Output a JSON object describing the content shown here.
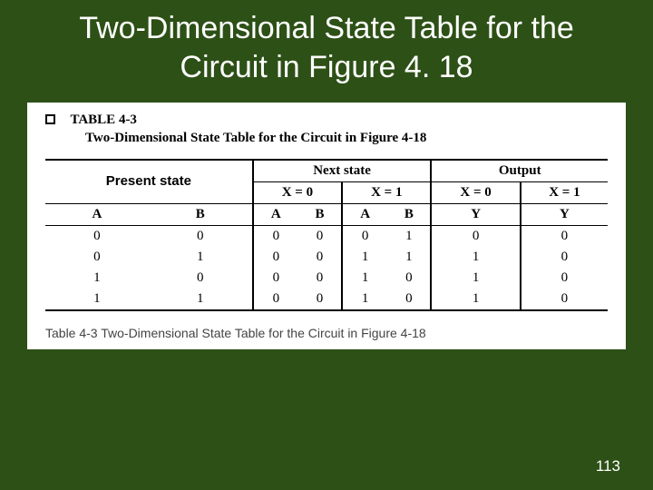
{
  "slide": {
    "title": "Two-Dimensional State Table for the Circuit in Figure 4. 18",
    "page_number": "113",
    "background_color": "#2d5016",
    "title_color": "#ffffff"
  },
  "table_block": {
    "label": "TABLE 4-3",
    "subtitle": "Two-Dimensional State Table for the Circuit in Figure 4-18",
    "caption": "Table 4-3  Two-Dimensional State Table for the Circuit in Figure 4-18",
    "group_headers": {
      "present": "Present state",
      "next": "Next state",
      "output": "Output"
    },
    "input_cond": {
      "x0": "X = 0",
      "x1": "X = 1"
    },
    "col_labels": {
      "A": "A",
      "B": "B",
      "Y": "Y"
    },
    "rows": [
      {
        "ps": [
          "0",
          "0"
        ],
        "ns0": [
          "0",
          "0"
        ],
        "ns1": [
          "0",
          "1"
        ],
        "y0": "0",
        "y1": "0"
      },
      {
        "ps": [
          "0",
          "1"
        ],
        "ns0": [
          "0",
          "0"
        ],
        "ns1": [
          "1",
          "1"
        ],
        "y0": "1",
        "y1": "0"
      },
      {
        "ps": [
          "1",
          "0"
        ],
        "ns0": [
          "0",
          "0"
        ],
        "ns1": [
          "1",
          "0"
        ],
        "y0": "1",
        "y1": "0"
      },
      {
        "ps": [
          "1",
          "1"
        ],
        "ns0": [
          "0",
          "0"
        ],
        "ns1": [
          "1",
          "0"
        ],
        "y0": "1",
        "y1": "0"
      }
    ]
  }
}
